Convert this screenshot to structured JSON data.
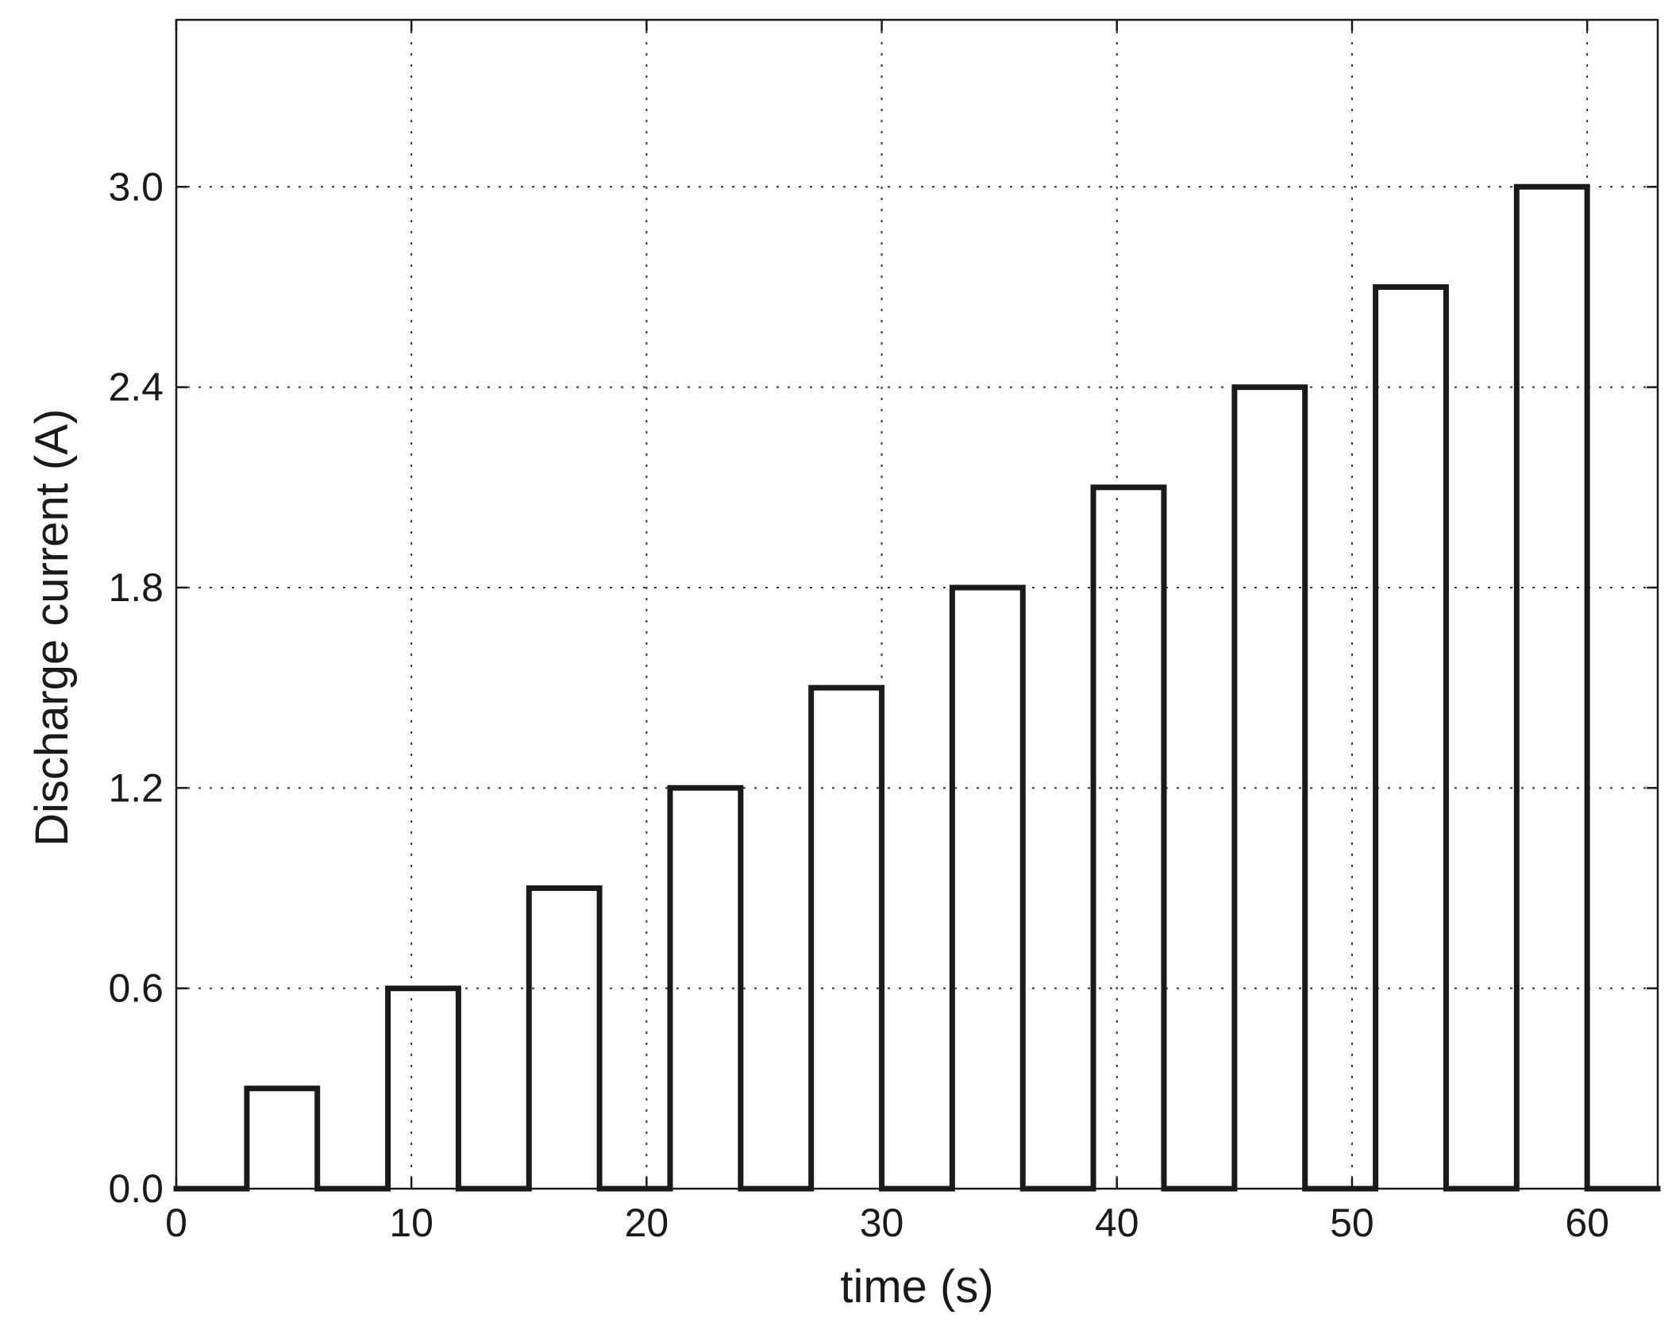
{
  "chart_data": {
    "type": "line",
    "title": "",
    "xlabel": "time (s)",
    "ylabel": "Discharge current (A)",
    "xlim": [
      0,
      63
    ],
    "ylim": [
      0,
      3.5
    ],
    "xticks": [
      0,
      10,
      20,
      30,
      40,
      50,
      60
    ],
    "xtick_labels": [
      "0",
      "10",
      "20",
      "30",
      "40",
      "50",
      "60"
    ],
    "yticks": [
      0,
      0.6,
      1.2,
      1.8,
      2.4,
      3.0
    ],
    "ytick_labels": [
      "0.0",
      "0.6",
      "1.2",
      "1.8",
      "2.4",
      "3.0"
    ],
    "grid": true,
    "line_color": "#1a1a1a",
    "series": [
      {
        "x": [
          0,
          3,
          3,
          6,
          6,
          9,
          9,
          12,
          12,
          15,
          15,
          18,
          18,
          21,
          21,
          24,
          24,
          27,
          27,
          30,
          30,
          33,
          33,
          36,
          36,
          39,
          39,
          42,
          42,
          45,
          45,
          48,
          48,
          51,
          51,
          54,
          54,
          57,
          57,
          60,
          60,
          63
        ],
        "y": [
          0,
          0,
          0.3,
          0.3,
          0,
          0,
          0.6,
          0.6,
          0,
          0,
          0.9,
          0.9,
          0,
          0,
          1.2,
          1.2,
          0,
          0,
          1.5,
          1.5,
          0,
          0,
          1.8,
          1.8,
          0,
          0,
          2.1,
          2.1,
          0,
          0,
          2.4,
          2.4,
          0,
          0,
          2.7,
          2.7,
          0,
          0,
          3.0,
          3.0,
          0,
          0
        ]
      }
    ]
  }
}
